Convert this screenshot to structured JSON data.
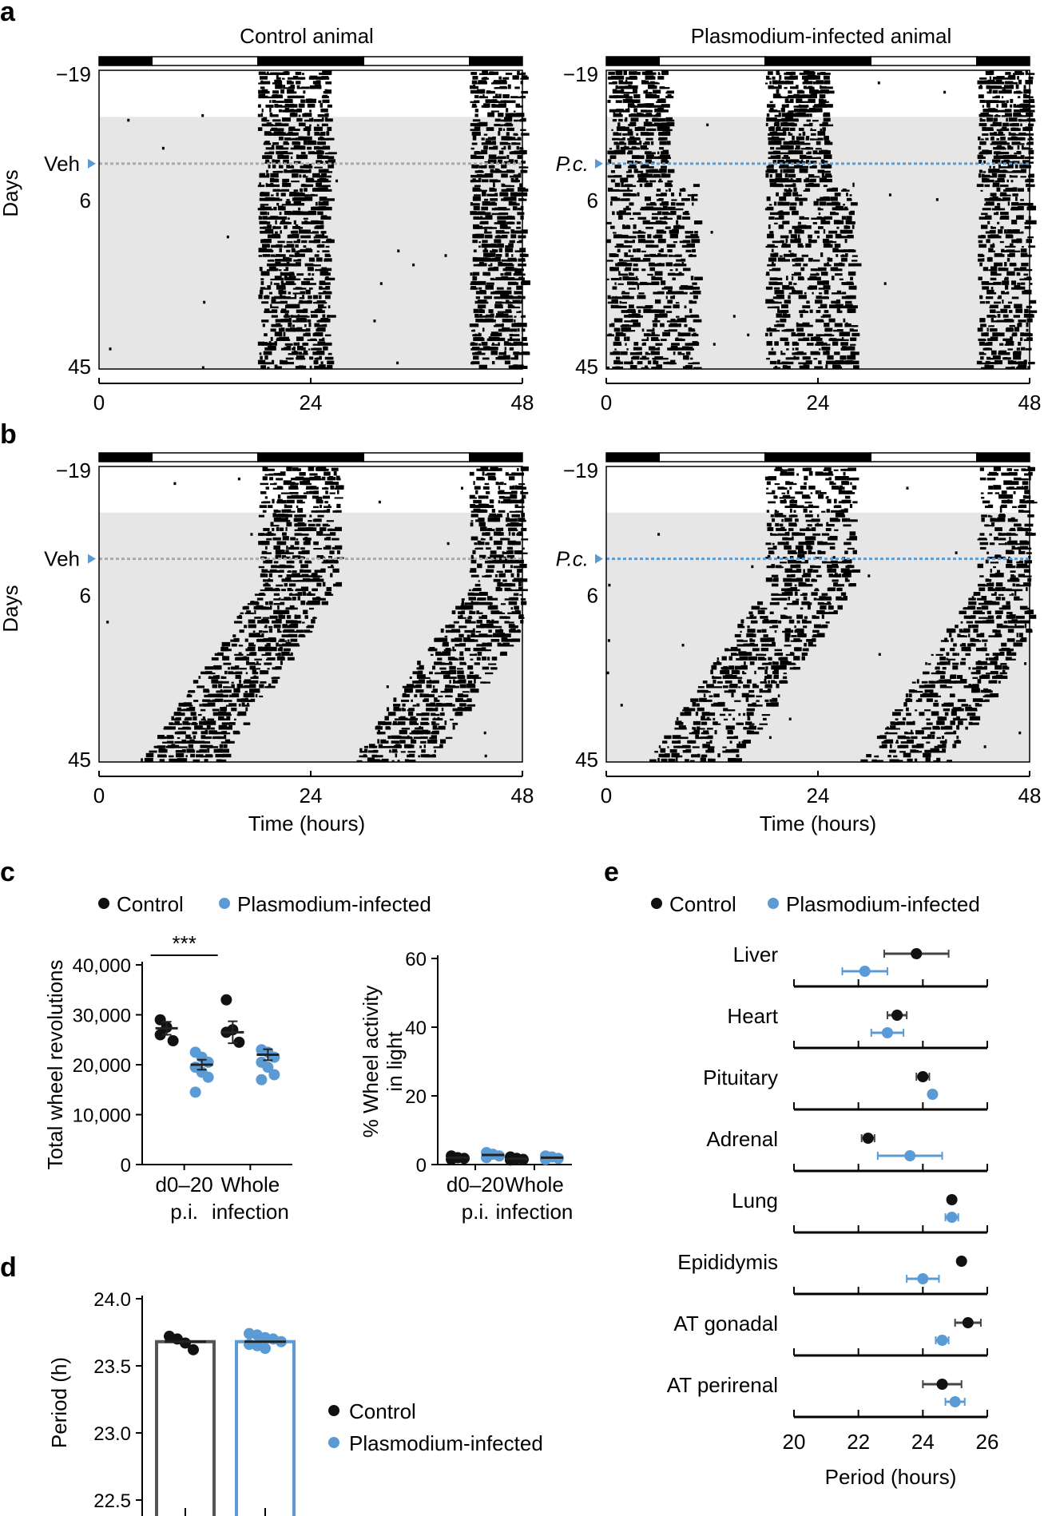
{
  "colors": {
    "control": "#111111",
    "infected": "#5b9bd5",
    "shade": "#e6e6e6",
    "veh_line": "#aaaaaa",
    "bar_control": "#555555"
  },
  "panel_labels": {
    "a": "a",
    "b": "b",
    "c": "c",
    "d": "d",
    "e": "e"
  },
  "actograms": {
    "col_titles": {
      "left": "Control animal",
      "right": "Plasmodium-infected animal"
    },
    "y_label": "Days",
    "day_ticks": [
      "−19",
      "6",
      "45"
    ],
    "time_ticks": [
      "0",
      "24",
      "48"
    ],
    "x_label": "Time (hours)",
    "markers": {
      "veh": "Veh",
      "pc": "P.c."
    }
  },
  "chart_data": [
    {
      "id": "c-left",
      "type": "scatter",
      "title": "",
      "ylabel": "Total wheel revolutions",
      "ylim": [
        0,
        40000
      ],
      "yticks": [
        "0",
        "10,000",
        "20,000",
        "30,000",
        "40,000"
      ],
      "categories": [
        "d0–20 p.i.",
        "Whole infection"
      ],
      "significance": "***",
      "series": [
        {
          "name": "Control",
          "values": [
            [
              29000,
              27500,
              24800,
              26000
            ],
            [
              33000,
              27000,
              24500,
              26500
            ]
          ],
          "mean": [
            27300,
            26500
          ],
          "sem": [
            1300,
            2200
          ]
        },
        {
          "name": "Plasmodium-infected",
          "values": [
            [
              22500,
              21500,
              20500,
              19500,
              18500,
              17500,
              14500
            ],
            [
              23000,
              22500,
              21500,
              20500,
              19500,
              18000,
              17000
            ]
          ],
          "mean": [
            20000,
            22000
          ],
          "sem": [
            1000,
            1100
          ]
        }
      ]
    },
    {
      "id": "c-right",
      "type": "scatter",
      "ylabel": "% Wheel activity in light",
      "ylim": [
        0,
        60
      ],
      "yticks": [
        "0",
        "20",
        "40",
        "60"
      ],
      "categories": [
        "d0–20 p.i.",
        "Whole infection"
      ],
      "series": [
        {
          "name": "Control",
          "values": [
            [
              2.5,
              2,
              1.8,
              1.5
            ],
            [
              2.2,
              1.8,
              1.5,
              1.3
            ]
          ],
          "mean": [
            2,
            1.7
          ]
        },
        {
          "name": "Plasmodium-infected",
          "values": [
            [
              3.5,
              3,
              2.5,
              2
            ],
            [
              2.5,
              2.2,
              1.8,
              1.5
            ]
          ],
          "mean": [
            2.8,
            2
          ]
        }
      ]
    },
    {
      "id": "d",
      "type": "bar",
      "ylabel": "Period (h)",
      "ylim": [
        22.5,
        24.0
      ],
      "yticks": [
        "22.5",
        "23.0",
        "23.5",
        "24.0"
      ],
      "categories": [
        "Control",
        "Plasmodium-infected"
      ],
      "values": [
        23.68,
        23.68
      ],
      "points": [
        [
          23.72,
          23.7,
          23.67,
          23.62
        ],
        [
          23.74,
          23.73,
          23.71,
          23.7,
          23.68,
          23.66,
          23.65,
          23.63
        ]
      ]
    },
    {
      "id": "e",
      "type": "scatter",
      "xlabel": "Period (hours)",
      "xlim": [
        20,
        26
      ],
      "xticks": [
        "20",
        "22",
        "24",
        "26"
      ],
      "categories": [
        "Liver",
        "Heart",
        "Pituitary",
        "Adrenal",
        "Lung",
        "Epididymis",
        "AT gonadal",
        "AT perirenal"
      ],
      "series": [
        {
          "name": "Control",
          "mean": [
            23.8,
            23.2,
            24.0,
            22.3,
            24.9,
            25.2,
            25.4,
            24.6
          ],
          "err": [
            1.0,
            0.3,
            0.2,
            0.2,
            0.1,
            0.1,
            0.4,
            0.6
          ]
        },
        {
          "name": "Plasmodium-infected",
          "mean": [
            22.2,
            22.9,
            24.3,
            23.6,
            24.9,
            24.0,
            24.6,
            25.0
          ],
          "err": [
            0.7,
            0.5,
            0.1,
            1.0,
            0.2,
            0.5,
            0.2,
            0.3
          ]
        }
      ]
    }
  ],
  "legend": {
    "control": "Control",
    "infected": "Plasmodium-infected"
  }
}
